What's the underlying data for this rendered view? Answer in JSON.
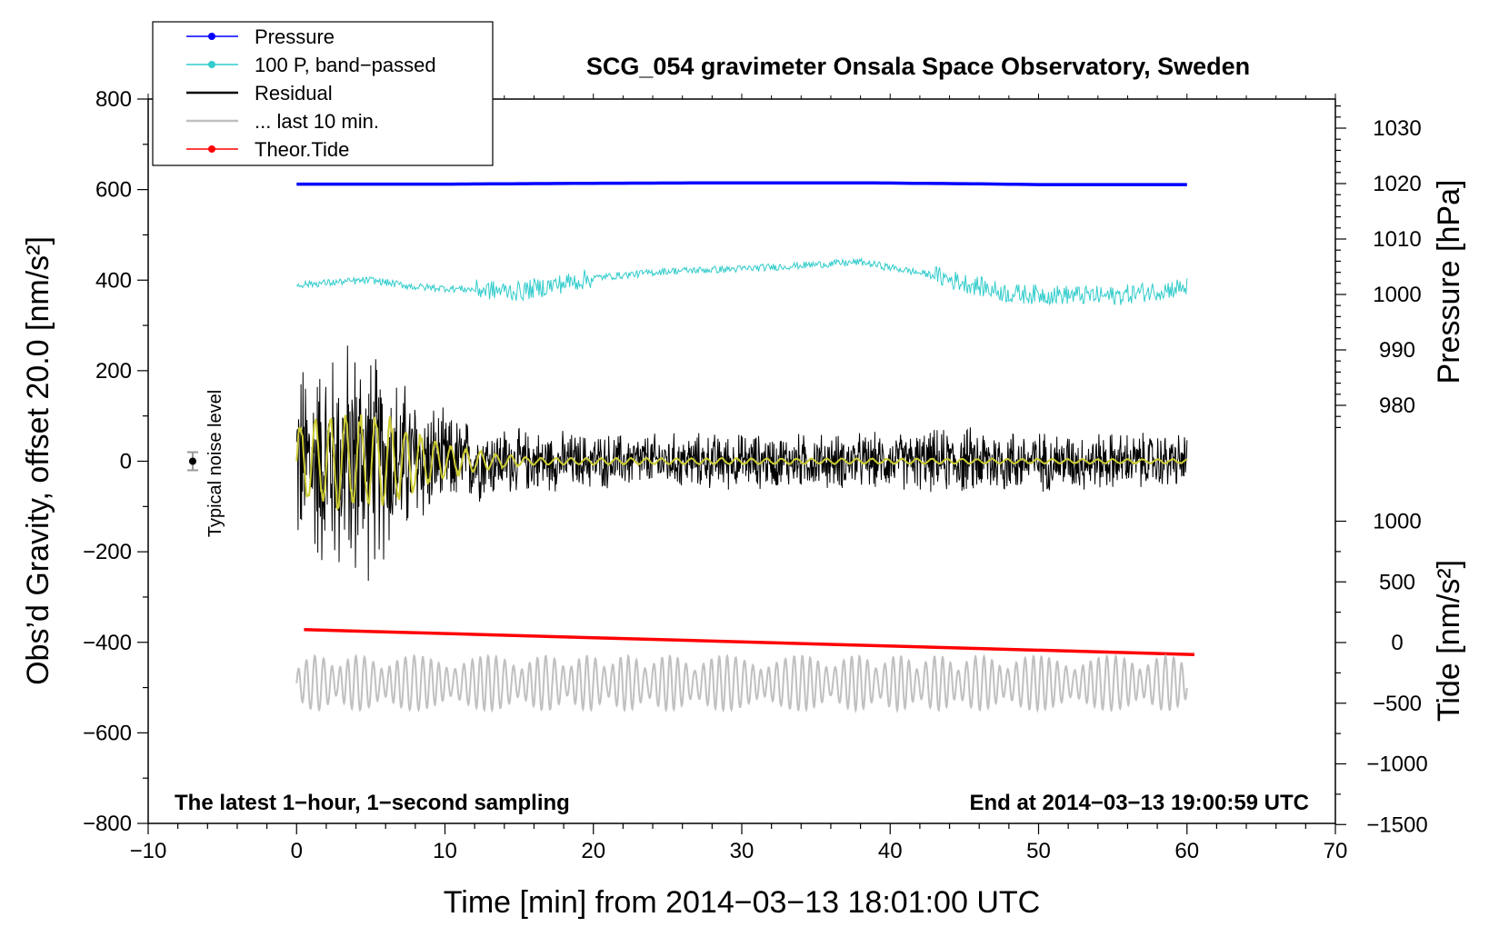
{
  "chart_data": {
    "type": "line",
    "title": "SCG_054 gravimeter Onsala Space Observatory, Sweden",
    "xlabel": "Time [min] from 2014−03−13 18:01:00 UTC",
    "ylabel_left": "Obs’d Gravity, offset 20.0 [nm/s²]",
    "ylabel_right_pressure": "Pressure [hPa]",
    "ylabel_right_tide": "Tide [nm/s²]",
    "xlim": [
      -10,
      70
    ],
    "ylim_left": [
      -800,
      800
    ],
    "x_ticks": [
      "−10",
      "0",
      "10",
      "20",
      "30",
      "40",
      "50",
      "60",
      "70"
    ],
    "y_left_ticks": [
      "800",
      "600",
      "400",
      "200",
      "0",
      "−200",
      "−400",
      "−600",
      "−800"
    ],
    "pressure_ticks": [
      "1030",
      "1020",
      "1010",
      "1000",
      "990",
      "980"
    ],
    "tide_ticks": [
      "1000",
      "500",
      "0",
      "−500",
      "−1000",
      "−1500"
    ],
    "note_left": "The latest 1−hour, 1−second sampling",
    "note_right": "End at 2014−03−13 19:00:59 UTC",
    "noise_label": "Typical noise level",
    "noise_level": {
      "x": -7,
      "y": 0,
      "err": 20
    },
    "legend": [
      {
        "name": "Pressure",
        "color": "#0000ff",
        "marker": true
      },
      {
        "name": "100 P, band−passed",
        "color": "#33cccc",
        "marker": true
      },
      {
        "name": "Residual",
        "color": "#000000",
        "marker": false
      },
      {
        "name": "... last 10 min.",
        "color": "#c0c0c0",
        "marker": false
      },
      {
        "name": "Theor.Tide",
        "color": "#ff0000",
        "marker": true
      }
    ],
    "series": [
      {
        "name": "Pressure",
        "color": "#0000ff",
        "x": [
          0,
          10,
          20,
          30,
          38,
          45,
          50,
          60
        ],
        "y": [
          612,
          612,
          614,
          615,
          615,
          613,
          611,
          611
        ]
      },
      {
        "name": "100 P, band−passed",
        "color": "#33cccc",
        "x": [
          0,
          5,
          8,
          15,
          20,
          25,
          30,
          38,
          43,
          48,
          55,
          60
        ],
        "y": [
          390,
          400,
          385,
          375,
          405,
          420,
          425,
          440,
          410,
          370,
          365,
          385
        ]
      },
      {
        "name": "Residual",
        "color": "#000000",
        "x": [
          0,
          2,
          4,
          6,
          8,
          10,
          15,
          20,
          30,
          40,
          47,
          50,
          60
        ],
        "y_amp": [
          250,
          280,
          320,
          250,
          180,
          120,
          80,
          70,
          70,
          70,
          90,
          75,
          70
        ]
      },
      {
        "name": "Residual (smoothed)",
        "color": "#cccc33",
        "x": [
          0,
          3,
          6,
          8,
          10,
          13,
          16,
          60
        ],
        "y_amp": [
          90,
          110,
          110,
          70,
          40,
          20,
          8,
          5
        ]
      },
      {
        "name": "Theor.Tide",
        "color": "#ff0000",
        "x": [
          0.5,
          60.5
        ],
        "y": [
          -372,
          -427
        ]
      },
      {
        "name": "... last 10 min.",
        "color": "#c0c0c0",
        "x": [
          0,
          60
        ],
        "y_center": [
          -490,
          -490
        ],
        "y_amp": [
          60,
          60
        ]
      }
    ]
  }
}
